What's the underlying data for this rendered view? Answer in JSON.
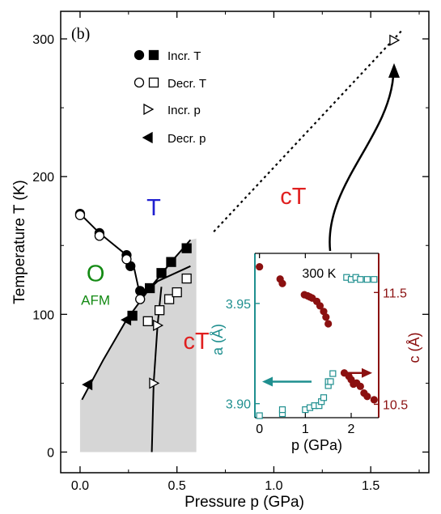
{
  "chart_data": [
    {
      "type": "scatter",
      "panel_label": "(b)",
      "xlabel": "Pressure p  (GPa)",
      "ylabel": "Temperature T  (K)",
      "xlim": [
        -0.1,
        1.8
      ],
      "ylim": [
        -15,
        320
      ],
      "xticks": [
        0.0,
        0.5,
        1.0,
        1.5
      ],
      "xtick_labels": [
        "0.0",
        "0.5",
        "1.0",
        "1.5"
      ],
      "yticks": [
        0,
        100,
        200,
        300
      ],
      "ytick_labels": [
        "0",
        "100",
        "200",
        "300"
      ],
      "phase_labels": [
        {
          "text": "T",
          "color": "#1f1fd0",
          "x": 0.38,
          "y": 172
        },
        {
          "text": "O",
          "color": "#138a13",
          "x": 0.08,
          "y": 124
        },
        {
          "text": "AFM",
          "color": "#138a13",
          "x": 0.08,
          "y": 107
        },
        {
          "text": "cT",
          "color": "#e02020",
          "x": 0.6,
          "y": 75
        },
        {
          "text": "cT",
          "color": "#e02020",
          "x": 1.1,
          "y": 180
        }
      ],
      "legend": [
        {
          "label": "Incr. T",
          "symbols": [
            "circle-filled",
            "square-filled"
          ]
        },
        {
          "label": "Decr. T",
          "symbols": [
            "circle-open",
            "square-open"
          ]
        },
        {
          "label": "Incr. p",
          "symbols": [
            "triangle-right-open"
          ]
        },
        {
          "label": "Decr. p",
          "symbols": [
            "triangle-left-filled"
          ]
        }
      ],
      "series": [
        {
          "marker": "circle-filled",
          "points": [
            [
              0.0,
              173
            ],
            [
              0.1,
              159
            ],
            [
              0.24,
              143
            ],
            [
              0.26,
              135
            ],
            [
              0.31,
              117
            ]
          ]
        },
        {
          "marker": "circle-open",
          "points": [
            [
              0.0,
              172
            ],
            [
              0.1,
              157
            ],
            [
              0.24,
              140
            ],
            [
              0.31,
              111
            ]
          ]
        },
        {
          "marker": "square-filled",
          "points": [
            [
              0.27,
              99
            ],
            [
              0.36,
              119
            ],
            [
              0.42,
              130
            ],
            [
              0.47,
              138
            ],
            [
              0.55,
              148
            ]
          ]
        },
        {
          "marker": "square-open",
          "points": [
            [
              0.35,
              95
            ],
            [
              0.41,
              103
            ],
            [
              0.46,
              111
            ],
            [
              0.5,
              116
            ],
            [
              0.55,
              126
            ]
          ]
        },
        {
          "marker": "triangle-right-open",
          "points": [
            [
              0.4,
              92
            ],
            [
              0.38,
              50
            ],
            [
              1.62,
              299
            ]
          ]
        },
        {
          "marker": "triangle-left-filled",
          "points": [
            [
              0.24,
              96
            ],
            [
              0.04,
              49
            ]
          ]
        }
      ],
      "phase_lines": [
        {
          "style": "solid",
          "points": [
            [
              0.0,
              173
            ],
            [
              0.1,
              159
            ],
            [
              0.24,
              143
            ],
            [
              0.28,
              133
            ],
            [
              0.3,
              120
            ],
            [
              0.31,
              117
            ]
          ]
        },
        {
          "style": "solid",
          "points": [
            [
              0.01,
              38
            ],
            [
              0.12,
              67
            ],
            [
              0.24,
              96
            ],
            [
              0.36,
              119
            ],
            [
              0.47,
              138
            ],
            [
              0.57,
              154
            ]
          ]
        },
        {
          "style": "solid",
          "points": [
            [
              0.3,
              111
            ],
            [
              0.4,
              124
            ],
            [
              0.57,
              135
            ]
          ]
        },
        {
          "style": "solid",
          "points": [
            [
              0.37,
              0
            ],
            [
              0.38,
              50
            ],
            [
              0.4,
              92
            ],
            [
              0.42,
              120
            ]
          ]
        },
        {
          "style": "dotted",
          "points": [
            [
              0.69,
              160
            ],
            [
              1.66,
              306
            ]
          ]
        }
      ],
      "shaded_region_ylim": [
        0,
        155
      ],
      "inset": {
        "title": "300 K",
        "xlabel": "p (GPa)",
        "ylabel_left": "a (Å)",
        "ylabel_right": "c (Å)",
        "xlim": [
          -0.1,
          2.6
        ],
        "xticks": [
          0,
          1,
          2
        ],
        "xtick_labels": [
          "0",
          "1",
          "2"
        ],
        "left_ylim": [
          3.893,
          3.975
        ],
        "left_yticks": [
          3.9,
          3.95
        ],
        "left_ytick_labels": [
          "3.90",
          "3.95"
        ],
        "right_ylim": [
          10.38,
          11.85
        ],
        "right_yticks": [
          10.5,
          11.5
        ],
        "right_ytick_labels": [
          "10.5",
          "11.5"
        ],
        "left_color": "#1f8f8f",
        "right_color": "#8b1010",
        "a_values": {
          "x": [
            0.0,
            0.5,
            0.5,
            1.0,
            1.1,
            1.2,
            1.3,
            1.35,
            1.4,
            1.5,
            1.5,
            1.55,
            1.6,
            1.9,
            2.0,
            2.1,
            2.2,
            2.35,
            2.5
          ],
          "y": [
            3.894,
            3.895,
            3.897,
            3.897,
            3.898,
            3.899,
            3.899,
            3.901,
            3.903,
            3.909,
            3.911,
            3.911,
            3.915,
            3.963,
            3.962,
            3.963,
            3.962,
            3.962,
            3.962
          ]
        },
        "c_values": {
          "x": [
            0.0,
            0.45,
            0.5,
            0.98,
            1.05,
            1.1,
            1.15,
            1.25,
            1.32,
            1.4,
            1.45,
            1.5,
            1.85,
            1.95,
            2.0,
            2.05,
            2.12,
            2.2,
            2.28,
            2.35,
            2.5
          ],
          "y": [
            11.73,
            11.62,
            11.58,
            11.48,
            11.47,
            11.46,
            11.45,
            11.42,
            11.38,
            11.33,
            11.28,
            11.22,
            10.78,
            10.75,
            10.72,
            10.68,
            10.69,
            10.66,
            10.6,
            10.57,
            10.54
          ]
        }
      }
    }
  ]
}
